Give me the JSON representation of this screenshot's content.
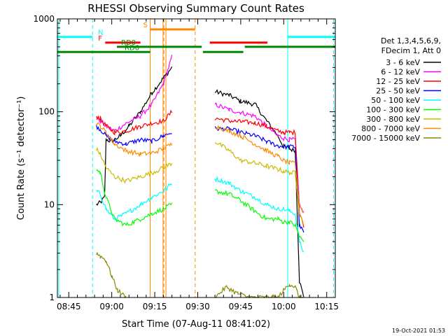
{
  "chart_data": {
    "type": "line",
    "title": "RHESSI Observing Summary Count Rates",
    "xlabel": "Start Time (07-Aug-11 08:41:02)",
    "ylabel": "Count Rate (s⁻¹ detector⁻¹)",
    "y_scale": "log",
    "ylim": [
      1,
      1000
    ],
    "xlim_minutes": [
      41.03,
      138.0
    ],
    "x_ticks": [
      {
        "label": "08:45",
        "minutes": 45
      },
      {
        "label": "09:00",
        "minutes": 60
      },
      {
        "label": "09:15",
        "minutes": 75
      },
      {
        "label": "09:30",
        "minutes": 90
      },
      {
        "label": "09:45",
        "minutes": 105
      },
      {
        "label": "10:00",
        "minutes": 120
      },
      {
        "label": "10:15",
        "minutes": 135
      }
    ],
    "y_ticks": [
      {
        "label": "1",
        "value": 1
      },
      {
        "label": "10",
        "value": 10
      },
      {
        "label": "100",
        "value": 100
      },
      {
        "label": "1000",
        "value": 1000
      }
    ],
    "legend_header": [
      "Det 1,3,4,5,6,9,",
      "FDecim 1, Att 0"
    ],
    "legend_placement": "right",
    "series": [
      {
        "name": "3 - 6 keV",
        "color": "#000000",
        "points": [
          [
            54.6,
            10
          ],
          [
            56,
            10.5
          ],
          [
            57.5,
            12
          ],
          [
            58,
            50
          ],
          [
            60,
            48
          ],
          [
            63,
            55
          ],
          [
            66,
            70
          ],
          [
            70,
            100
          ],
          [
            74,
            160
          ],
          [
            78,
            230
          ],
          [
            81,
            300
          ],
          [
            96,
            165
          ],
          [
            101,
            150
          ],
          [
            105,
            130
          ],
          [
            110,
            120
          ],
          [
            114,
            80
          ],
          [
            118,
            55
          ],
          [
            120,
            42
          ],
          [
            122,
            40
          ],
          [
            124,
            38
          ],
          [
            125.5,
            1.5
          ],
          [
            127,
            1
          ]
        ]
      },
      {
        "name": "6 - 12 keV",
        "color": "#ff00ff",
        "points": [
          [
            54.6,
            85
          ],
          [
            56,
            80
          ],
          [
            58,
            70
          ],
          [
            61,
            62
          ],
          [
            65,
            75
          ],
          [
            70,
            90
          ],
          [
            74,
            120
          ],
          [
            78,
            200
          ],
          [
            81,
            390
          ],
          [
            96,
            120
          ],
          [
            101,
            105
          ],
          [
            105,
            98
          ],
          [
            110,
            90
          ],
          [
            114,
            70
          ],
          [
            118,
            55
          ],
          [
            120,
            52
          ],
          [
            122,
            50
          ],
          [
            124,
            50
          ],
          [
            125.5,
            10
          ],
          [
            127,
            8
          ]
        ]
      },
      {
        "name": "12 - 25 keV",
        "color": "#ff0000",
        "points": [
          [
            54.6,
            90
          ],
          [
            56,
            85
          ],
          [
            58,
            70
          ],
          [
            61,
            60
          ],
          [
            65,
            62
          ],
          [
            70,
            70
          ],
          [
            74,
            75
          ],
          [
            78,
            80
          ],
          [
            81,
            100
          ],
          [
            96,
            85
          ],
          [
            101,
            80
          ],
          [
            105,
            78
          ],
          [
            110,
            76
          ],
          [
            114,
            70
          ],
          [
            118,
            62
          ],
          [
            120,
            60
          ],
          [
            122,
            60
          ],
          [
            124,
            60
          ],
          [
            125.5,
            8
          ],
          [
            127,
            6
          ]
        ]
      },
      {
        "name": "25 - 50 keV",
        "color": "#0000ff",
        "points": [
          [
            54.6,
            70
          ],
          [
            56,
            65
          ],
          [
            58,
            55
          ],
          [
            61,
            48
          ],
          [
            65,
            45
          ],
          [
            70,
            50
          ],
          [
            74,
            48
          ],
          [
            78,
            55
          ],
          [
            81,
            60
          ],
          [
            96,
            66
          ],
          [
            101,
            65
          ],
          [
            105,
            60
          ],
          [
            110,
            55
          ],
          [
            114,
            48
          ],
          [
            118,
            43
          ],
          [
            120,
            42
          ],
          [
            122,
            42
          ],
          [
            124,
            42
          ],
          [
            125.5,
            6
          ],
          [
            127,
            5
          ]
        ]
      },
      {
        "name": "50 - 100 keV",
        "color": "#00ffff",
        "points": [
          [
            54.6,
            14
          ],
          [
            56,
            13
          ],
          [
            58,
            9
          ],
          [
            61,
            7
          ],
          [
            65,
            8
          ],
          [
            70,
            10
          ],
          [
            74,
            12
          ],
          [
            78,
            14
          ],
          [
            81,
            17
          ],
          [
            96,
            19
          ],
          [
            101,
            17
          ],
          [
            105,
            14
          ],
          [
            110,
            12
          ],
          [
            114,
            10
          ],
          [
            118,
            9
          ],
          [
            120,
            9
          ],
          [
            122,
            8.5
          ],
          [
            124,
            8
          ],
          [
            125.5,
            4
          ],
          [
            127,
            3
          ]
        ]
      },
      {
        "name": "100 - 300 keV",
        "color": "#00ff00",
        "points": [
          [
            54.6,
            24
          ],
          [
            56,
            22
          ],
          [
            58,
            12
          ],
          [
            61,
            7
          ],
          [
            65,
            6
          ],
          [
            70,
            7
          ],
          [
            74,
            8
          ],
          [
            78,
            9
          ],
          [
            81,
            10
          ],
          [
            96,
            14
          ],
          [
            101,
            13
          ],
          [
            105,
            11
          ],
          [
            110,
            8.5
          ],
          [
            114,
            7
          ],
          [
            118,
            7
          ],
          [
            120,
            6.5
          ],
          [
            122,
            6.5
          ],
          [
            124,
            6
          ],
          [
            125.5,
            4.5
          ],
          [
            127,
            4
          ]
        ]
      },
      {
        "name": "300 - 800 keV",
        "color": "#ccbb00",
        "points": [
          [
            54.6,
            40
          ],
          [
            56,
            35
          ],
          [
            58,
            25
          ],
          [
            61,
            20
          ],
          [
            65,
            18
          ],
          [
            70,
            20
          ],
          [
            74,
            22
          ],
          [
            78,
            25
          ],
          [
            81,
            28
          ],
          [
            96,
            48
          ],
          [
            101,
            38
          ],
          [
            105,
            30
          ],
          [
            110,
            28
          ],
          [
            114,
            26
          ],
          [
            118,
            24
          ],
          [
            120,
            23
          ],
          [
            122,
            22
          ],
          [
            124,
            22
          ],
          [
            125.5,
            8
          ],
          [
            127,
            6
          ]
        ]
      },
      {
        "name": "800 - 7000 keV",
        "color": "#ff8800",
        "points": [
          [
            54.6,
            75
          ],
          [
            56,
            70
          ],
          [
            58,
            60
          ],
          [
            61,
            45
          ],
          [
            65,
            38
          ],
          [
            70,
            35
          ],
          [
            74,
            36
          ],
          [
            78,
            40
          ],
          [
            81,
            45
          ],
          [
            96,
            70
          ],
          [
            101,
            62
          ],
          [
            105,
            55
          ],
          [
            110,
            45
          ],
          [
            114,
            38
          ],
          [
            118,
            33
          ],
          [
            120,
            30
          ],
          [
            122,
            28
          ],
          [
            124,
            28
          ],
          [
            125.5,
            10
          ],
          [
            127,
            8
          ]
        ]
      },
      {
        "name": "7000 - 15000 keV",
        "color": "#888800",
        "points": [
          [
            54.6,
            3
          ],
          [
            56,
            2.8
          ],
          [
            58,
            2.5
          ],
          [
            60,
            1.7
          ],
          [
            62,
            1.2
          ],
          [
            65,
            1
          ],
          [
            96,
            1
          ],
          [
            100,
            1.3
          ],
          [
            104,
            1.1
          ],
          [
            108,
            1
          ],
          [
            116,
            1
          ],
          [
            118,
            1
          ],
          [
            120,
            1.2
          ],
          [
            122,
            1.4
          ],
          [
            124,
            1.3
          ],
          [
            125.5,
            1
          ],
          [
            127,
            1
          ]
        ]
      }
    ],
    "bars": [
      {
        "label": "N",
        "color": "#00ffff",
        "y_value": 640,
        "segments": [
          [
            41.03,
            53.3
          ],
          [
            121.4,
            138.0
          ]
        ]
      },
      {
        "label": "S",
        "color": "#ff8800",
        "y_value": 770,
        "segments": [
          [
            73.4,
            89.1
          ]
        ]
      },
      {
        "label": "F",
        "color": "#ff0000",
        "y_value": 555,
        "segments": [
          [
            57.7,
            70.0
          ],
          [
            94.2,
            114.3
          ]
        ]
      },
      {
        "label": "RD0",
        "color": "#008800",
        "y_value": 500,
        "segments": [
          [
            61.8,
            91.4
          ],
          [
            106.4,
            138.0
          ]
        ]
      },
      {
        "label": "RD6",
        "color": "#008800",
        "y_value": 440,
        "segments": [
          [
            41.03,
            73.4
          ],
          [
            91.8,
            105.9
          ]
        ]
      }
    ],
    "vlines_solid": [
      {
        "color": "#00ffff",
        "minutes": [
          41.5,
          121.4
        ]
      },
      {
        "color": "#ff8800",
        "minutes": [
          73.4,
          77.9,
          78.9
        ]
      }
    ],
    "vlines_dashed": [
      {
        "color": "#00ffff",
        "minutes": [
          53.3,
          137.4
        ]
      },
      {
        "color": "#ff8800",
        "minutes": [
          78.2,
          89.1
        ]
      }
    ],
    "timestamp": "19-Oct-2021 01:53"
  }
}
